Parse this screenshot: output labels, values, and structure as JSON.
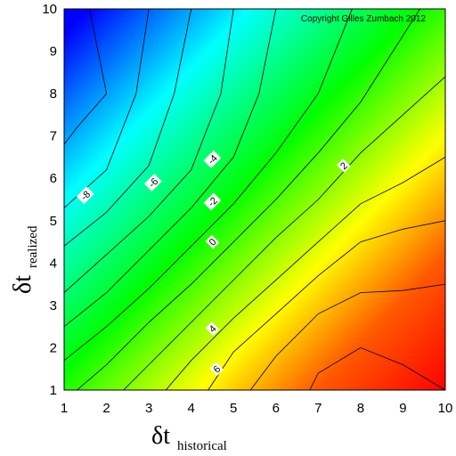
{
  "chart_data": {
    "type": "heatmap",
    "title": "",
    "copyright": "Copyright Gilles Zumbach 2012",
    "xlabel": {
      "symbol": "δt",
      "subscript": "historical"
    },
    "ylabel": {
      "symbol": "δt",
      "subscript": "realized"
    },
    "xlim": [
      1,
      10
    ],
    "ylim": [
      1,
      10
    ],
    "x_ticks": [
      "1",
      "2",
      "3",
      "4",
      "5",
      "6",
      "7",
      "8",
      "9",
      "10"
    ],
    "y_ticks": [
      "1",
      "2",
      "3",
      "4",
      "5",
      "6",
      "7",
      "8",
      "9",
      "10"
    ],
    "colormap": [
      "#ff0000",
      "#ffff00",
      "#00ff00",
      "#00ffff",
      "#0000ff"
    ],
    "color_direction": "high values red (bottom-right), low values blue (top-left)",
    "contour_labels": [
      {
        "text": "-8",
        "x": 1.5,
        "y": 5.6
      },
      {
        "text": "-6",
        "x": 3.1,
        "y": 5.9
      },
      {
        "text": "-4",
        "x": 4.5,
        "y": 6.45
      },
      {
        "text": "-2",
        "x": 4.5,
        "y": 5.45
      },
      {
        "text": "0",
        "x": 4.5,
        "y": 4.5
      },
      {
        "text": "2",
        "x": 7.6,
        "y": 6.3
      },
      {
        "text": "4",
        "x": 4.5,
        "y": 2.45
      },
      {
        "text": "6",
        "x": 4.6,
        "y": 1.5
      }
    ]
  }
}
